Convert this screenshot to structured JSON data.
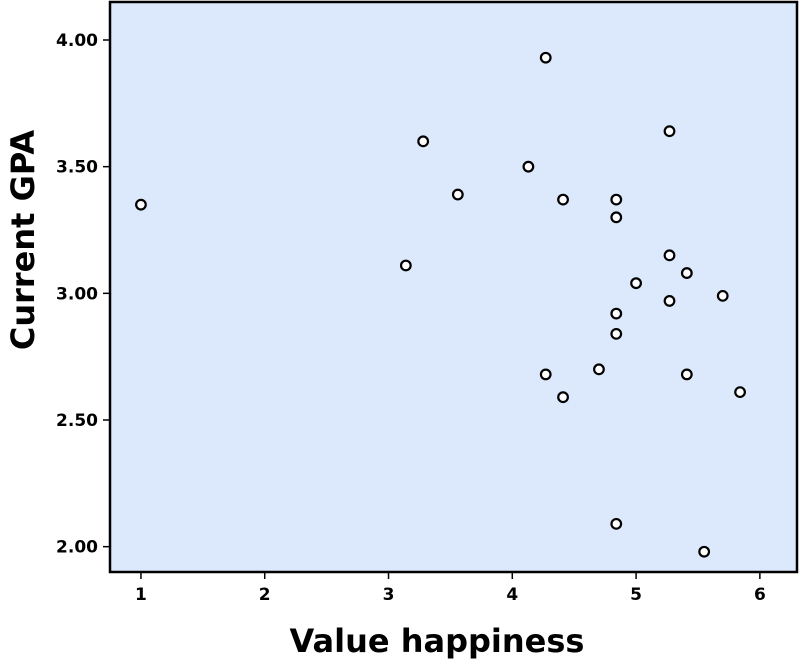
{
  "chart_data": {
    "type": "scatter",
    "title": "",
    "xlabel": "Value happiness",
    "ylabel": "Current GPA",
    "xlim": [
      0.75,
      6.3
    ],
    "ylim": [
      1.9,
      4.15
    ],
    "xticks": [
      1,
      2,
      3,
      4,
      5,
      6
    ],
    "xtick_labels": [
      "1",
      "2",
      "3",
      "4",
      "5",
      "6"
    ],
    "yticks": [
      2.0,
      2.5,
      3.0,
      3.5,
      4.0
    ],
    "ytick_labels": [
      "2.00",
      "2.50",
      "3.00",
      "3.50",
      "4.00"
    ],
    "grid": false,
    "legend": "none",
    "colors": {
      "plot_background": "#dce8fb",
      "marker_fill": "#ffffff",
      "marker_stroke": "#000000"
    },
    "x": [
      1.0,
      3.14,
      3.28,
      3.56,
      4.13,
      4.27,
      4.27,
      4.41,
      4.41,
      4.7,
      4.84,
      4.84,
      4.84,
      4.84,
      4.84,
      5.0,
      5.27,
      5.27,
      5.27,
      5.41,
      5.41,
      5.55,
      5.7,
      5.84
    ],
    "y": [
      3.35,
      3.11,
      3.6,
      3.39,
      3.5,
      3.93,
      2.68,
      3.37,
      2.59,
      2.7,
      3.37,
      3.3,
      2.92,
      2.84,
      2.09,
      3.04,
      3.64,
      3.15,
      2.97,
      3.08,
      2.68,
      1.98,
      2.99,
      2.61
    ]
  }
}
